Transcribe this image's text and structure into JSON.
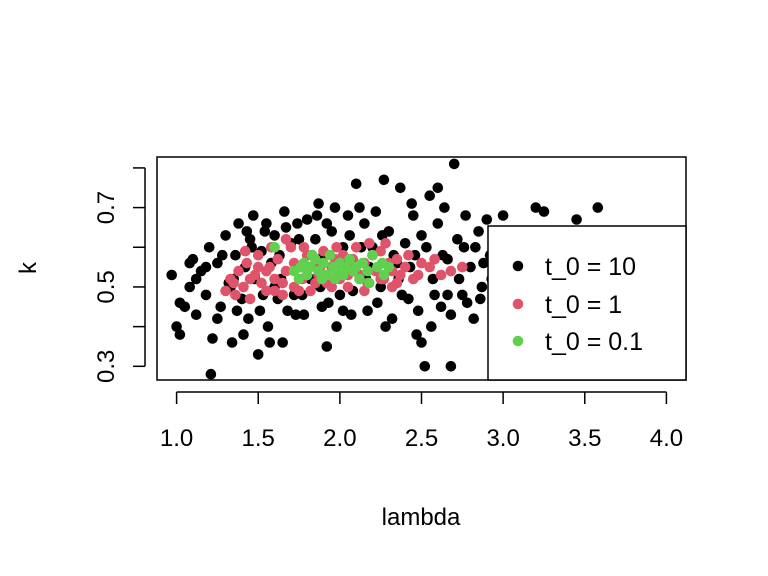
{
  "chart_data": {
    "type": "scatter",
    "title": "",
    "xlabel": "lambda",
    "ylabel": "k",
    "xlim": [
      0.88,
      4.12
    ],
    "ylim": [
      0.2655,
      0.8275
    ],
    "xticks": [
      1.0,
      1.5,
      2.0,
      2.5,
      3.0,
      3.5,
      4.0
    ],
    "xtick_labels": [
      "1.0",
      "1.5",
      "2.0",
      "2.5",
      "3.0",
      "3.5",
      "4.0"
    ],
    "yticks": [
      0.3,
      0.4,
      0.5,
      0.6,
      0.7,
      0.8
    ],
    "ytick_labels": [
      "0.3",
      "",
      "0.5",
      "",
      "0.7",
      ""
    ],
    "grid": false,
    "legend_position": "right",
    "series": [
      {
        "name": "t_0 = 10",
        "label": "t_0 = 10",
        "color": "#000000",
        "points": [
          [
            0.97,
            0.53
          ],
          [
            1.0,
            0.4
          ],
          [
            1.02,
            0.38
          ],
          [
            1.05,
            0.45
          ],
          [
            1.08,
            0.5
          ],
          [
            1.1,
            0.57
          ],
          [
            1.12,
            0.43
          ],
          [
            1.15,
            0.54
          ],
          [
            1.18,
            0.48
          ],
          [
            1.2,
            0.6
          ],
          [
            1.21,
            0.28
          ],
          [
            1.22,
            0.37
          ],
          [
            1.25,
            0.56
          ],
          [
            1.27,
            0.45
          ],
          [
            1.3,
            0.63
          ],
          [
            1.32,
            0.51
          ],
          [
            1.34,
            0.36
          ],
          [
            1.36,
            0.58
          ],
          [
            1.38,
            0.66
          ],
          [
            1.4,
            0.47
          ],
          [
            1.42,
            0.55
          ],
          [
            1.44,
            0.42
          ],
          [
            1.45,
            0.62
          ],
          [
            1.47,
            0.68
          ],
          [
            1.48,
            0.52
          ],
          [
            1.5,
            0.33
          ],
          [
            1.51,
            0.44
          ],
          [
            1.52,
            0.59
          ],
          [
            1.54,
            0.64
          ],
          [
            1.56,
            0.4
          ],
          [
            1.58,
            0.56
          ],
          [
            1.6,
            0.63
          ],
          [
            1.62,
            0.47
          ],
          [
            1.64,
            0.52
          ],
          [
            1.66,
            0.69
          ],
          [
            1.68,
            0.44
          ],
          [
            1.7,
            0.61
          ],
          [
            1.72,
            0.48
          ],
          [
            1.74,
            0.66
          ],
          [
            1.76,
            0.55
          ],
          [
            1.78,
            0.43
          ],
          [
            1.8,
            0.67
          ],
          [
            1.82,
            0.52
          ],
          [
            1.85,
            0.62
          ],
          [
            1.87,
            0.71
          ],
          [
            1.89,
            0.45
          ],
          [
            1.9,
            0.58
          ],
          [
            1.92,
            0.35
          ],
          [
            1.95,
            0.64
          ],
          [
            1.97,
            0.7
          ],
          [
            2.0,
            0.48
          ],
          [
            2.02,
            0.6
          ],
          [
            2.05,
            0.68
          ],
          [
            2.07,
            0.43
          ],
          [
            2.1,
            0.76
          ],
          [
            2.12,
            0.53
          ],
          [
            2.15,
            0.66
          ],
          [
            2.17,
            0.44
          ],
          [
            2.2,
            0.6
          ],
          [
            2.22,
            0.69
          ],
          [
            2.25,
            0.5
          ],
          [
            2.27,
            0.77
          ],
          [
            2.3,
            0.64
          ],
          [
            2.32,
            0.42
          ],
          [
            2.35,
            0.56
          ],
          [
            2.37,
            0.75
          ],
          [
            2.4,
            0.61
          ],
          [
            2.42,
            0.47
          ],
          [
            2.45,
            0.68
          ],
          [
            2.47,
            0.38
          ],
          [
            2.5,
            0.63
          ],
          [
            2.52,
            0.3
          ],
          [
            2.55,
            0.73
          ],
          [
            2.57,
            0.52
          ],
          [
            2.6,
            0.66
          ],
          [
            2.62,
            0.45
          ],
          [
            2.64,
            0.7
          ],
          [
            2.66,
            0.57
          ],
          [
            2.68,
            0.3
          ],
          [
            2.7,
            0.81
          ],
          [
            2.72,
            0.62
          ],
          [
            2.75,
            0.48
          ],
          [
            2.77,
            0.68
          ],
          [
            2.8,
            0.55
          ],
          [
            2.82,
            0.42
          ],
          [
            2.85,
            0.64
          ],
          [
            2.87,
            0.5
          ],
          [
            2.9,
            0.67
          ],
          [
            2.92,
            0.58
          ],
          [
            2.95,
            0.45
          ],
          [
            2.97,
            0.62
          ],
          [
            3.0,
            0.68
          ],
          [
            3.02,
            0.55
          ],
          [
            3.05,
            0.6
          ],
          [
            3.1,
            0.48
          ],
          [
            3.15,
            0.63
          ],
          [
            3.2,
            0.7
          ],
          [
            3.25,
            0.69
          ],
          [
            3.3,
            0.53
          ],
          [
            3.35,
            0.6
          ],
          [
            3.4,
            0.55
          ],
          [
            3.45,
            0.67
          ],
          [
            3.5,
            0.58
          ],
          [
            3.58,
            0.7
          ],
          [
            1.25,
            0.42
          ],
          [
            1.33,
            0.5
          ],
          [
            1.41,
            0.38
          ],
          [
            1.53,
            0.48
          ],
          [
            1.63,
            0.58
          ],
          [
            1.73,
            0.43
          ],
          [
            1.83,
            0.58
          ],
          [
            1.93,
            0.46
          ],
          [
            2.03,
            0.56
          ],
          [
            2.13,
            0.6
          ],
          [
            2.23,
            0.46
          ],
          [
            2.33,
            0.58
          ],
          [
            2.43,
            0.55
          ],
          [
            2.53,
            0.6
          ],
          [
            2.63,
            0.58
          ],
          [
            2.73,
            0.52
          ],
          [
            2.83,
            0.6
          ],
          [
            2.93,
            0.52
          ],
          [
            1.28,
            0.58
          ],
          [
            1.37,
            0.44
          ],
          [
            1.46,
            0.6
          ],
          [
            1.57,
            0.36
          ],
          [
            1.67,
            0.65
          ],
          [
            1.77,
            0.48
          ],
          [
            1.88,
            0.5
          ],
          [
            1.98,
            0.4
          ],
          [
            2.08,
            0.49
          ],
          [
            2.18,
            0.55
          ],
          [
            2.28,
            0.4
          ],
          [
            2.38,
            0.48
          ],
          [
            2.48,
            0.44
          ],
          [
            2.58,
            0.48
          ],
          [
            2.68,
            0.43
          ],
          [
            2.78,
            0.46
          ],
          [
            2.88,
            0.56
          ],
          [
            1.12,
            0.52
          ],
          [
            1.18,
            0.55
          ],
          [
            1.35,
            0.52
          ],
          [
            1.43,
            0.64
          ],
          [
            1.55,
            0.66
          ],
          [
            1.65,
            0.36
          ],
          [
            1.75,
            0.62
          ],
          [
            1.86,
            0.68
          ],
          [
            1.96,
            0.55
          ],
          [
            2.06,
            0.63
          ],
          [
            2.16,
            0.52
          ],
          [
            2.26,
            0.63
          ],
          [
            2.36,
            0.52
          ],
          [
            2.46,
            0.58
          ],
          [
            2.56,
            0.4
          ],
          [
            2.66,
            0.48
          ],
          [
            2.76,
            0.6
          ],
          [
            2.86,
            0.47
          ],
          [
            3.08,
            0.58
          ],
          [
            3.18,
            0.46
          ],
          [
            3.28,
            0.63
          ],
          [
            1.92,
            0.66
          ],
          [
            2.12,
            0.7
          ],
          [
            2.44,
            0.71
          ],
          [
            2.6,
            0.75
          ],
          [
            2.5,
            0.36
          ],
          [
            2.02,
            0.44
          ],
          [
            1.6,
            0.5
          ],
          [
            1.08,
            0.56
          ],
          [
            1.02,
            0.46
          ]
        ]
      },
      {
        "name": "t_0 = 1",
        "label": "t_0 = 1",
        "color": "#df536b",
        "points": [
          [
            1.3,
            0.49
          ],
          [
            1.33,
            0.52
          ],
          [
            1.36,
            0.48
          ],
          [
            1.38,
            0.54
          ],
          [
            1.41,
            0.5
          ],
          [
            1.43,
            0.56
          ],
          [
            1.45,
            0.47
          ],
          [
            1.48,
            0.53
          ],
          [
            1.5,
            0.58
          ],
          [
            1.52,
            0.51
          ],
          [
            1.55,
            0.49
          ],
          [
            1.57,
            0.55
          ],
          [
            1.6,
            0.52
          ],
          [
            1.62,
            0.57
          ],
          [
            1.65,
            0.48
          ],
          [
            1.67,
            0.54
          ],
          [
            1.7,
            0.6
          ],
          [
            1.72,
            0.5
          ],
          [
            1.75,
            0.55
          ],
          [
            1.77,
            0.52
          ],
          [
            1.8,
            0.58
          ],
          [
            1.82,
            0.49
          ],
          [
            1.85,
            0.56
          ],
          [
            1.87,
            0.53
          ],
          [
            1.9,
            0.59
          ],
          [
            1.92,
            0.51
          ],
          [
            1.95,
            0.55
          ],
          [
            1.97,
            0.57
          ],
          [
            2.0,
            0.52
          ],
          [
            2.02,
            0.58
          ],
          [
            2.05,
            0.5
          ],
          [
            2.07,
            0.55
          ],
          [
            2.1,
            0.6
          ],
          [
            2.12,
            0.53
          ],
          [
            2.15,
            0.56
          ],
          [
            2.17,
            0.51
          ],
          [
            2.2,
            0.58
          ],
          [
            2.22,
            0.54
          ],
          [
            2.25,
            0.59
          ],
          [
            2.27,
            0.52
          ],
          [
            2.3,
            0.56
          ],
          [
            2.32,
            0.5
          ],
          [
            2.35,
            0.57
          ],
          [
            2.37,
            0.53
          ],
          [
            2.4,
            0.55
          ],
          [
            2.42,
            0.58
          ],
          [
            2.45,
            0.52
          ],
          [
            2.5,
            0.56
          ],
          [
            2.55,
            0.55
          ],
          [
            2.58,
            0.57
          ],
          [
            2.62,
            0.53
          ],
          [
            2.68,
            0.54
          ],
          [
            2.75,
            0.55
          ],
          [
            1.67,
            0.62
          ],
          [
            1.78,
            0.6
          ],
          [
            1.98,
            0.6
          ],
          [
            2.18,
            0.61
          ],
          [
            2.28,
            0.61
          ],
          [
            1.35,
            0.51
          ],
          [
            1.45,
            0.52
          ],
          [
            1.55,
            0.54
          ],
          [
            1.65,
            0.51
          ],
          [
            1.75,
            0.49
          ],
          [
            1.85,
            0.51
          ],
          [
            1.95,
            0.5
          ],
          [
            2.05,
            0.53
          ],
          [
            2.15,
            0.49
          ],
          [
            2.25,
            0.52
          ],
          [
            2.35,
            0.51
          ],
          [
            1.5,
            0.55
          ],
          [
            1.6,
            0.49
          ],
          [
            1.72,
            0.56
          ],
          [
            1.88,
            0.55
          ],
          [
            2.08,
            0.57
          ],
          [
            2.32,
            0.54
          ],
          [
            2.48,
            0.53
          ],
          [
            1.42,
            0.59
          ],
          [
            1.58,
            0.6
          ]
        ]
      },
      {
        "name": "t_0 = 0.1",
        "label": "t_0 = 0.1",
        "color": "#61d04f",
        "points": [
          [
            1.6,
            0.6
          ],
          [
            1.72,
            0.54
          ],
          [
            1.75,
            0.52
          ],
          [
            1.78,
            0.56
          ],
          [
            1.8,
            0.53
          ],
          [
            1.82,
            0.55
          ],
          [
            1.85,
            0.57
          ],
          [
            1.87,
            0.54
          ],
          [
            1.89,
            0.52
          ],
          [
            1.9,
            0.56
          ],
          [
            1.92,
            0.53
          ],
          [
            1.94,
            0.58
          ],
          [
            1.96,
            0.55
          ],
          [
            1.98,
            0.54
          ],
          [
            2.0,
            0.56
          ],
          [
            2.02,
            0.53
          ],
          [
            2.04,
            0.55
          ],
          [
            2.06,
            0.57
          ],
          [
            2.08,
            0.54
          ],
          [
            2.1,
            0.55
          ],
          [
            2.12,
            0.52
          ],
          [
            2.14,
            0.56
          ],
          [
            2.17,
            0.54
          ],
          [
            2.2,
            0.58
          ],
          [
            2.23,
            0.55
          ],
          [
            2.27,
            0.53
          ],
          [
            2.3,
            0.55
          ],
          [
            1.83,
            0.58
          ],
          [
            1.97,
            0.52
          ],
          [
            2.18,
            0.51
          ],
          [
            2.26,
            0.56
          ],
          [
            1.76,
            0.55
          ]
        ]
      }
    ]
  }
}
